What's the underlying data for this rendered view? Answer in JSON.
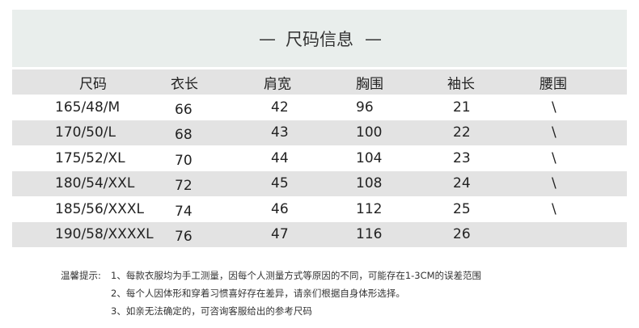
{
  "title": "尺码信息",
  "title_dash": "—",
  "headers": [
    "尺码",
    "衣长",
    "肩宽",
    "胸围",
    "袖长",
    "腰围"
  ],
  "rows": [
    [
      "165/48/M",
      "66",
      "42",
      "96",
      "21",
      "\\"
    ],
    [
      "170/50/L",
      "68",
      "43",
      "100",
      "22",
      "\\"
    ],
    [
      "175/52/XL",
      "70",
      "44",
      "104",
      "23",
      "\\"
    ],
    [
      "180/54/XXL",
      "72",
      "45",
      "108",
      "24",
      "\\"
    ],
    [
      "185/56/XXXL",
      "74",
      "46",
      "112",
      "25",
      "\\"
    ],
    [
      "190/58/XXXXL",
      "76",
      "47",
      "116",
      "26",
      ""
    ]
  ],
  "notes": {
    "label": "温馨提示:",
    "items": [
      "1、每款衣服均为手工测量，因每个人测量方式等原因的不同，可能存在1-3CM的误差范围",
      "2、每个人因体形和穿着习惯喜好存在差异，请亲们根据自身体形选择。",
      "3、如亲无法确定的，可咨询客服给出的参考尺码"
    ]
  }
}
